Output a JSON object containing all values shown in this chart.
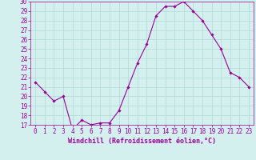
{
  "hours": [
    0,
    1,
    2,
    3,
    4,
    5,
    6,
    7,
    8,
    9,
    10,
    11,
    12,
    13,
    14,
    15,
    16,
    17,
    18,
    19,
    20,
    21,
    22,
    23
  ],
  "values": [
    21.5,
    20.5,
    19.5,
    20.0,
    16.5,
    17.5,
    17.0,
    17.2,
    17.2,
    18.5,
    21.0,
    23.5,
    25.5,
    28.5,
    29.5,
    29.5,
    30.0,
    29.0,
    28.0,
    26.5,
    25.0,
    22.5,
    22.0,
    21.0
  ],
  "line_color": "#990099",
  "marker": "D",
  "marker_size": 1.8,
  "linewidth": 0.8,
  "bg_color": "#d4f0ee",
  "grid_color": "#b0d8d5",
  "xlabel": "Windchill (Refroidissement éolien,°C)",
  "xlabel_color": "#990099",
  "xlabel_fontsize": 6.0,
  "tick_color": "#990099",
  "tick_fontsize": 5.5,
  "ylim": [
    17,
    30
  ],
  "xlim": [
    -0.5,
    23.5
  ],
  "yticks": [
    17,
    18,
    19,
    20,
    21,
    22,
    23,
    24,
    25,
    26,
    27,
    28,
    29,
    30
  ],
  "xticks": [
    0,
    1,
    2,
    3,
    4,
    5,
    6,
    7,
    8,
    9,
    10,
    11,
    12,
    13,
    14,
    15,
    16,
    17,
    18,
    19,
    20,
    21,
    22,
    23
  ]
}
